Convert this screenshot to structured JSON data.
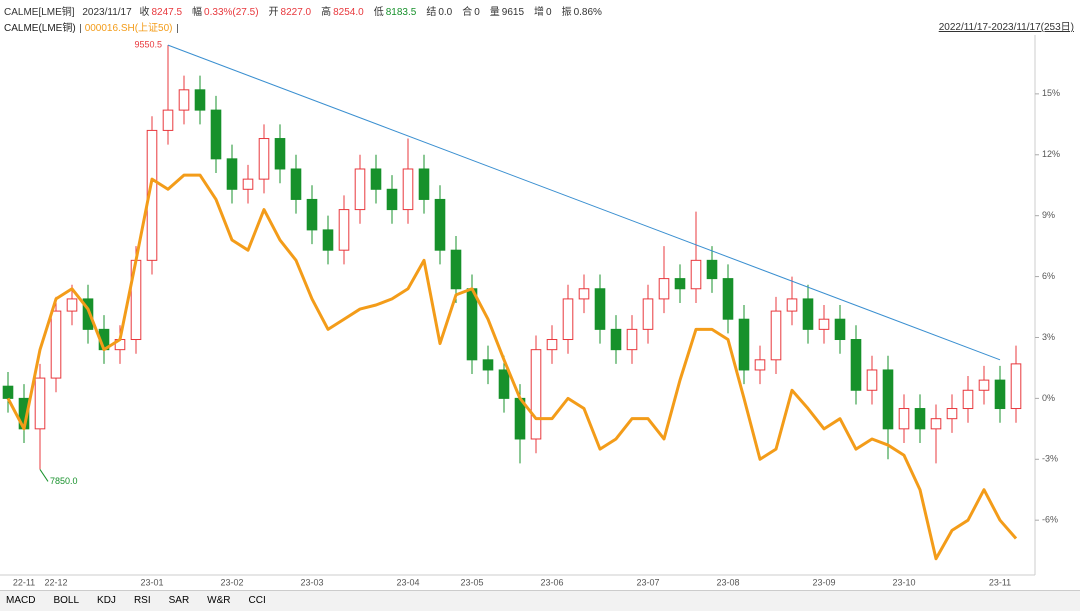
{
  "header": {
    "symbol": "CALME[LME铜]",
    "date": "2023/11/17",
    "fields": [
      {
        "label": "收",
        "value": "8247.5",
        "color": "#e8383d"
      },
      {
        "label": "幅",
        "value": "0.33%(27.5)",
        "color": "#e8383d"
      },
      {
        "label": "开",
        "value": "8227.0",
        "color": "#e8383d"
      },
      {
        "label": "高",
        "value": "8254.0",
        "color": "#e8383d"
      },
      {
        "label": "低",
        "value": "8183.5",
        "color": "#17912b"
      },
      {
        "label": "结",
        "value": "0.0",
        "color": "#333333"
      },
      {
        "label": "合",
        "value": "0",
        "color": "#333333"
      },
      {
        "label": "量",
        "value": "9615",
        "color": "#333333"
      },
      {
        "label": "增",
        "value": "0",
        "color": "#333333"
      },
      {
        "label": "振",
        "value": "0.86%",
        "color": "#333333"
      }
    ]
  },
  "chart_data": {
    "type": "candlestick",
    "range_label": "2022/11/17-2023/11/17(253日)",
    "categories": [
      null,
      "22-11",
      null,
      "22-12",
      null,
      null,
      null,
      null,
      null,
      "23-01",
      null,
      null,
      null,
      null,
      "23-02",
      null,
      null,
      null,
      null,
      "23-03",
      null,
      null,
      null,
      null,
      null,
      "23-04",
      null,
      null,
      null,
      "23-05",
      null,
      null,
      null,
      null,
      "23-06",
      null,
      null,
      null,
      null,
      null,
      "23-07",
      null,
      null,
      null,
      null,
      "23-08",
      null,
      null,
      null,
      null,
      null,
      "23-09",
      null,
      null,
      null,
      null,
      "23-10",
      null,
      null,
      null,
      null,
      null,
      "23-11",
      null
    ],
    "series": [
      {
        "name": "CALME(LME铜)",
        "type": "candlestick",
        "color": "#222222",
        "up_color": "#e8383d",
        "down_color": "#17912b",
        "open": [
          0.6,
          0,
          -1.5,
          1,
          4.3,
          4.9,
          3.4,
          2.4,
          2.9,
          6.8,
          13.2,
          14.2,
          15.2,
          14.2,
          11.8,
          10.3,
          10.8,
          12.8,
          11.3,
          9.8,
          8.3,
          7.3,
          9.3,
          11.3,
          10.3,
          9.3,
          11.3,
          9.8,
          7.3,
          5.4,
          1.9,
          1.4,
          0,
          -2,
          2.4,
          2.9,
          4.9,
          5.4,
          3.4,
          2.4,
          3.4,
          4.9,
          5.9,
          5.4,
          6.8,
          5.9,
          3.9,
          1.4,
          1.9,
          4.3,
          4.9,
          3.4,
          3.9,
          2.9,
          0.4,
          1.4,
          -1.5,
          -0.5,
          -1.5,
          -1,
          -0.5,
          0.4,
          0.9,
          -0.5
        ],
        "high": [
          1.3,
          0.7,
          1.7,
          5,
          5.6,
          5.6,
          4.1,
          3.6,
          7.5,
          13.9,
          17.4,
          15.9,
          15.9,
          14.9,
          12.5,
          11.5,
          13.5,
          13.5,
          12,
          10.5,
          9,
          10,
          12,
          12,
          11,
          12.8,
          12,
          10.5,
          8,
          6.1,
          2.6,
          2.1,
          0.7,
          3.1,
          3.6,
          5.6,
          6.1,
          6.1,
          4.1,
          4.1,
          5.6,
          7.5,
          6.6,
          9.2,
          7.5,
          6.6,
          4.6,
          2.6,
          5,
          6,
          5.6,
          4.6,
          4.6,
          3.6,
          2.1,
          2.1,
          0.2,
          0.2,
          -0.3,
          0.2,
          1.1,
          1.6,
          1.6,
          2.6
        ],
        "low": [
          -0.7,
          -2.2,
          -3.5,
          0.3,
          3.6,
          2.7,
          1.7,
          1.7,
          2.2,
          6.1,
          12.5,
          13.5,
          13.5,
          11.1,
          9.6,
          9.6,
          10.1,
          10.6,
          9.1,
          7.6,
          6.6,
          6.6,
          8.6,
          9.6,
          8.6,
          8.6,
          9.1,
          6.6,
          4.7,
          1.2,
          0.7,
          -0.7,
          -3.2,
          -2.7,
          1.7,
          2.2,
          4.2,
          2.7,
          1.7,
          1.7,
          2.7,
          4.2,
          4.7,
          4.7,
          5.2,
          3.2,
          0.7,
          0.7,
          1.2,
          3.6,
          2.7,
          2.7,
          2.2,
          -0.3,
          -0.3,
          -3,
          -2.2,
          -2.2,
          -3.2,
          -1.7,
          -1.2,
          -0.3,
          -1.2,
          -1.2
        ],
        "close": [
          0,
          -1.5,
          1,
          4.3,
          4.9,
          3.4,
          2.4,
          2.9,
          6.8,
          13.2,
          14.2,
          15.2,
          14.2,
          11.8,
          10.3,
          10.8,
          12.8,
          11.3,
          9.8,
          8.3,
          7.3,
          9.3,
          11.3,
          10.3,
          9.3,
          11.3,
          9.8,
          7.3,
          5.4,
          1.9,
          1.4,
          0,
          -2,
          2.4,
          2.9,
          4.9,
          5.4,
          3.4,
          2.4,
          3.4,
          4.9,
          5.9,
          5.4,
          6.8,
          5.9,
          3.9,
          1.4,
          1.9,
          4.3,
          4.9,
          3.4,
          3.9,
          2.9,
          0.4,
          1.4,
          -1.5,
          -0.5,
          -1.5,
          -1,
          -0.5,
          0.4,
          0.9,
          -0.5,
          1.7
        ]
      },
      {
        "name": "000016.SH(上证50)",
        "type": "line",
        "color": "#f39c19",
        "values": [
          0,
          -1.5,
          2.4,
          4.9,
          5.4,
          4.4,
          2.4,
          2.9,
          6.8,
          10.8,
          10.3,
          11,
          11,
          9.8,
          7.8,
          7.3,
          9.3,
          7.8,
          6.8,
          4.9,
          3.4,
          3.9,
          4.4,
          4.6,
          4.9,
          5.4,
          6.8,
          2.7,
          5.1,
          5.4,
          3.9,
          1.9,
          0,
          -1,
          -1,
          0,
          -0.5,
          -2.5,
          -2,
          -1,
          -1,
          -2,
          0.9,
          3.4,
          3.4,
          2.9,
          0,
          -3,
          -2.5,
          0.4,
          -0.5,
          -1.5,
          -1,
          -2.5,
          -2,
          -2.3,
          -2.8,
          -4.5,
          -7.9,
          -6.5,
          -6,
          -4.5,
          -6,
          -6.9
        ]
      }
    ],
    "trend_line": {
      "x": [
        10,
        62
      ],
      "values": [
        17.4,
        1.9
      ],
      "color": "#3a8fd0"
    },
    "annotations": [
      {
        "text": "9550.5",
        "x": 10,
        "y": 17.4,
        "color": "#e8383d"
      },
      {
        "text": "7850.0",
        "x": 2,
        "y": -3.5,
        "color": "#17912b"
      }
    ],
    "ylim": [
      -8.7,
      17.9
    ],
    "yticks": [
      {
        "value": -6,
        "label": "-6%"
      },
      {
        "value": -3,
        "label": "-3%"
      },
      {
        "value": 0,
        "label": "0%"
      },
      {
        "value": 3,
        "label": "3%"
      },
      {
        "value": 6,
        "label": "6%"
      },
      {
        "value": 9,
        "label": "9%"
      },
      {
        "value": 12,
        "label": "12%"
      },
      {
        "value": 15,
        "label": "15%"
      }
    ]
  },
  "tabs": [
    "MACD",
    "BOLL",
    "KDJ",
    "RSI",
    "SAR",
    "W&R",
    "CCI"
  ]
}
